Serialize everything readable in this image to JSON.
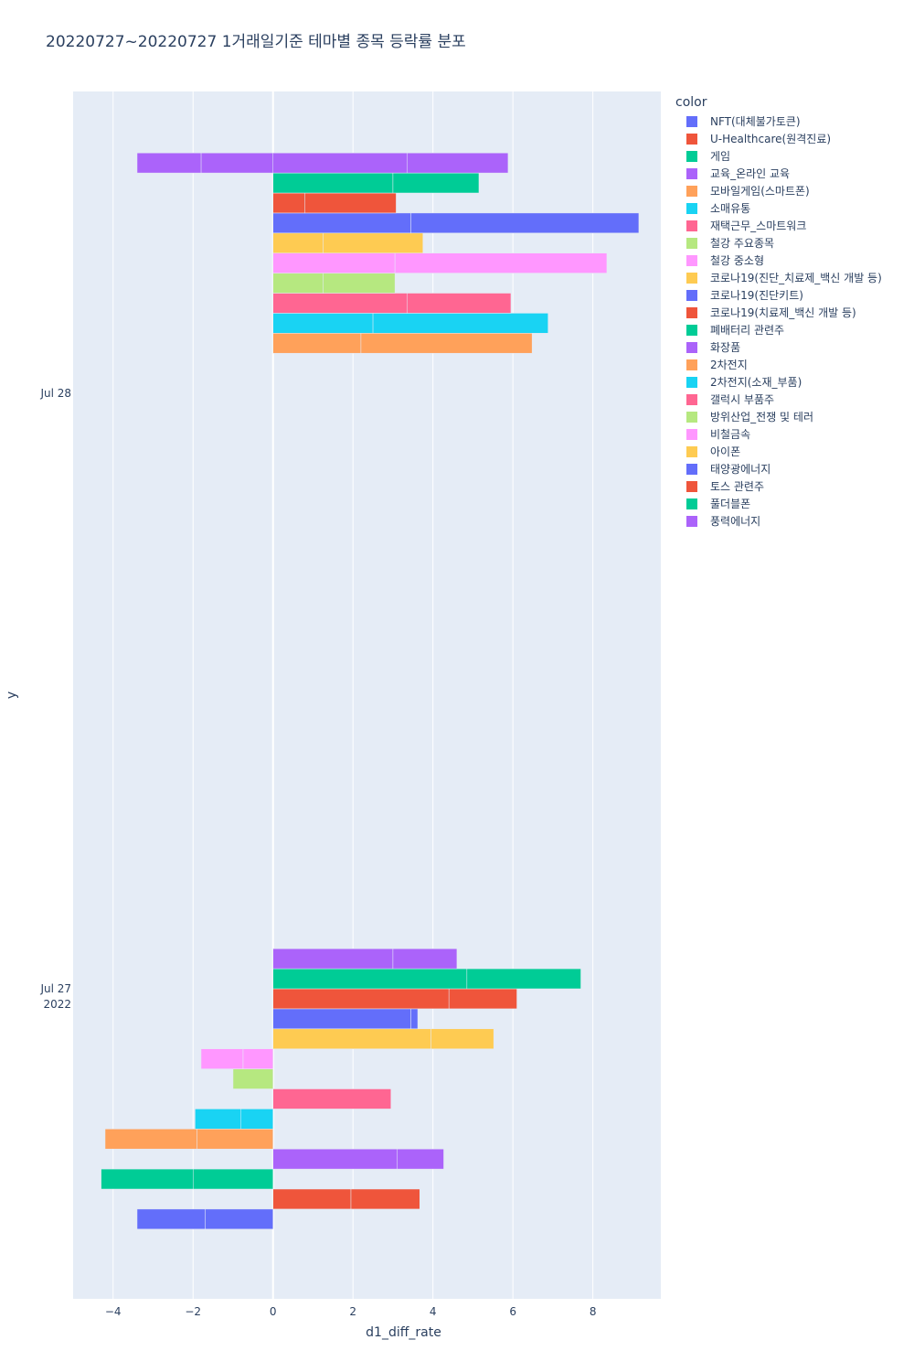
{
  "chart_data": {
    "type": "bar",
    "orientation": "horizontal",
    "barmode": "group",
    "title": "20220727~20220727 1거래일기준 테마별 종목 등락률 분포",
    "xlabel": "d1_diff_rate",
    "ylabel": "y",
    "xlim": [
      -5,
      9.7
    ],
    "x_ticks": [
      -4,
      -2,
      0,
      2,
      4,
      6,
      8
    ],
    "x_tick_labels": [
      "−4",
      "−2",
      "0",
      "2",
      "4",
      "6",
      "8"
    ],
    "y_tick_labels": [
      {
        "date": "2022-07-28",
        "text": [
          "Jul 28"
        ]
      },
      {
        "date": "2022-07-27",
        "text": [
          "Jul 27",
          "2022"
        ]
      }
    ],
    "grid": true,
    "legend_title": "color",
    "legend_position": "right",
    "background": "#e5ecf6",
    "series": [
      {
        "name": "NFT(대체불가토큰)",
        "color": "#636efa",
        "points": [
          {
            "date": "2022-07-27",
            "segments": [
              -1.7,
              -1.7
            ]
          }
        ]
      },
      {
        "name": "U-Healthcare(원격진료)",
        "color": "#ef553b",
        "points": [
          {
            "date": "2022-07-27",
            "segments": [
              1.95,
              1.72
            ]
          }
        ]
      },
      {
        "name": "게임",
        "color": "#00cc96",
        "points": [
          {
            "date": "2022-07-27",
            "segments": [
              -2.0,
              -2.3
            ]
          }
        ]
      },
      {
        "name": "교육_온라인 교육",
        "color": "#ab63fa",
        "points": [
          {
            "date": "2022-07-27",
            "segments": [
              3.1,
              1.17
            ]
          }
        ]
      },
      {
        "name": "모바일게임(스마트폰)",
        "color": "#ffa15a",
        "points": [
          {
            "date": "2022-07-27",
            "segments": [
              -1.9,
              -2.3
            ]
          }
        ]
      },
      {
        "name": "소매유통",
        "color": "#19d3f3",
        "points": [
          {
            "date": "2022-07-27",
            "segments": [
              -0.8,
              -1.15
            ]
          }
        ]
      },
      {
        "name": "재택근무_스마트워크",
        "color": "#ff6692",
        "points": [
          {
            "date": "2022-07-27",
            "segments": [
              2.95
            ]
          }
        ]
      },
      {
        "name": "철강 주요종목",
        "color": "#b6e880",
        "points": [
          {
            "date": "2022-07-27",
            "segments": [
              -1.0
            ]
          }
        ]
      },
      {
        "name": "철강 중소형",
        "color": "#ff97ff",
        "points": [
          {
            "date": "2022-07-27",
            "segments": [
              -0.75,
              -1.05
            ]
          }
        ]
      },
      {
        "name": "코로나19(진단_치료제_백신 개발 등)",
        "color": "#fecb52",
        "points": [
          {
            "date": "2022-07-27",
            "segments": [
              3.95,
              1.57
            ]
          }
        ]
      },
      {
        "name": "코로나19(진단키트)",
        "color": "#636efa",
        "points": [
          {
            "date": "2022-07-27",
            "segments": [
              3.45,
              0.17
            ]
          }
        ]
      },
      {
        "name": "코로나19(치료제_백신 개발 등)",
        "color": "#ef553b",
        "points": [
          {
            "date": "2022-07-27",
            "segments": [
              4.4,
              1.7
            ]
          }
        ]
      },
      {
        "name": "폐배터리 관련주",
        "color": "#00cc96",
        "points": [
          {
            "date": "2022-07-27",
            "segments": [
              4.85,
              2.85
            ]
          }
        ]
      },
      {
        "name": "화장품",
        "color": "#ab63fa",
        "points": [
          {
            "date": "2022-07-27",
            "segments": [
              3.0,
              1.6
            ]
          }
        ]
      },
      {
        "name": "2차전지",
        "color": "#ffa15a",
        "points": [
          {
            "date": "2022-07-28",
            "segments": [
              2.2,
              4.28
            ]
          }
        ]
      },
      {
        "name": "2차전지(소재_부품)",
        "color": "#19d3f3",
        "points": [
          {
            "date": "2022-07-28",
            "segments": [
              2.5,
              4.38
            ]
          }
        ]
      },
      {
        "name": "갤럭시 부품주",
        "color": "#ff6692",
        "points": [
          {
            "date": "2022-07-28",
            "segments": [
              3.35,
              2.6
            ]
          }
        ]
      },
      {
        "name": "방위산업_전쟁 및 테러",
        "color": "#b6e880",
        "points": [
          {
            "date": "2022-07-28",
            "segments": [
              1.25,
              1.8
            ]
          }
        ]
      },
      {
        "name": "비철금속",
        "color": "#ff97ff",
        "points": [
          {
            "date": "2022-07-28",
            "segments": [
              3.05,
              5.3
            ]
          }
        ]
      },
      {
        "name": "아이폰",
        "color": "#fecb52",
        "points": [
          {
            "date": "2022-07-28",
            "segments": [
              1.25,
              2.5
            ]
          }
        ]
      },
      {
        "name": "태양광에너지",
        "color": "#636efa",
        "points": [
          {
            "date": "2022-07-28",
            "segments": [
              3.45,
              5.7
            ]
          }
        ]
      },
      {
        "name": "토스 관련주",
        "color": "#ef553b",
        "points": [
          {
            "date": "2022-07-28",
            "segments": [
              0.8,
              2.28
            ]
          }
        ]
      },
      {
        "name": "풀더블폰",
        "color": "#00cc96",
        "points": [
          {
            "date": "2022-07-28",
            "segments": [
              3.0,
              2.15
            ]
          }
        ]
      },
      {
        "name": "풍력에너지",
        "color": "#ab63fa",
        "points": [
          {
            "date": "2022-07-28",
            "segments": [
              3.35,
              2.53
            ]
          },
          {
            "date": "2022-07-28",
            "segments": [
              -1.8,
              -1.6
            ]
          }
        ]
      }
    ]
  }
}
